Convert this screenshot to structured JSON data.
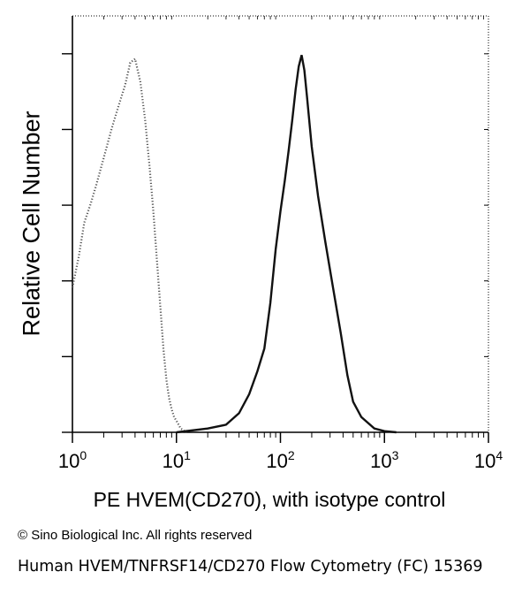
{
  "chart_data": {
    "type": "line",
    "title": "",
    "xlabel": "PE HVEM(CD270), with isotype control",
    "ylabel": "Relative Cell Number",
    "x_scale": "log",
    "xlim": [
      1,
      10000
    ],
    "ylim": [
      0,
      100
    ],
    "x_ticks": [
      {
        "value": 1,
        "base": "10",
        "exp": "0"
      },
      {
        "value": 10,
        "base": "10",
        "exp": "1"
      },
      {
        "value": 100,
        "base": "10",
        "exp": "2"
      },
      {
        "value": 1000,
        "base": "10",
        "exp": "3"
      },
      {
        "value": 10000,
        "base": "10",
        "exp": "4"
      }
    ],
    "grid": false,
    "legend": "none",
    "series": [
      {
        "style": "dotted",
        "color": "#555555",
        "points": [
          [
            1.0,
            38
          ],
          [
            1.15,
            46
          ],
          [
            1.3,
            55
          ],
          [
            1.5,
            60
          ],
          [
            1.7,
            65
          ],
          [
            2.0,
            72
          ],
          [
            2.4,
            80
          ],
          [
            2.8,
            86
          ],
          [
            3.2,
            91
          ],
          [
            3.6,
            97
          ],
          [
            4.0,
            98
          ],
          [
            4.5,
            92
          ],
          [
            5.0,
            82
          ],
          [
            5.5,
            70
          ],
          [
            6.0,
            58
          ],
          [
            6.5,
            45
          ],
          [
            7.0,
            33
          ],
          [
            7.5,
            22
          ],
          [
            8.0,
            14
          ],
          [
            8.5,
            9
          ],
          [
            9.0,
            6
          ],
          [
            9.5,
            4
          ],
          [
            10.0,
            3
          ],
          [
            11.0,
            1
          ],
          [
            12.5,
            0
          ]
        ]
      },
      {
        "style": "solid",
        "color": "#111111",
        "points": [
          [
            10,
            0
          ],
          [
            20,
            1
          ],
          [
            30,
            2
          ],
          [
            40,
            5
          ],
          [
            50,
            10
          ],
          [
            60,
            16
          ],
          [
            70,
            22
          ],
          [
            80,
            34
          ],
          [
            90,
            48
          ],
          [
            100,
            58
          ],
          [
            110,
            66
          ],
          [
            120,
            74
          ],
          [
            130,
            82
          ],
          [
            140,
            90
          ],
          [
            150,
            96
          ],
          [
            160,
            99
          ],
          [
            170,
            95
          ],
          [
            180,
            88
          ],
          [
            200,
            75
          ],
          [
            230,
            62
          ],
          [
            270,
            50
          ],
          [
            320,
            38
          ],
          [
            380,
            26
          ],
          [
            440,
            15
          ],
          [
            500,
            8
          ],
          [
            600,
            4
          ],
          [
            800,
            1
          ],
          [
            1000,
            0.3
          ],
          [
            1300,
            0
          ]
        ]
      }
    ]
  },
  "copyright": "© Sino Biological Inc. All rights reserved",
  "caption": "Human HVEM/TNFRSF14/CD270 Flow Cytometry (FC) 15369"
}
